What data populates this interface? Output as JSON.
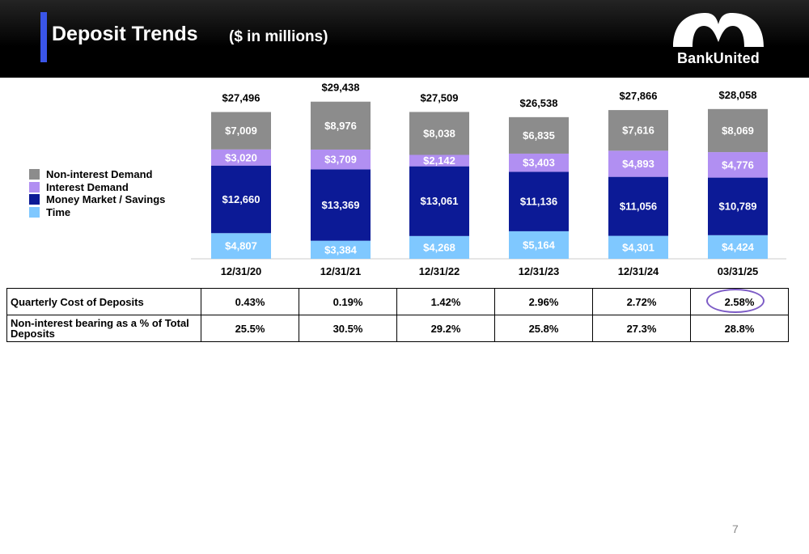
{
  "header": {
    "title": "Deposit Trends",
    "subtitle": "($ in millions)",
    "logo_text": "BankUnited"
  },
  "colors": {
    "non_interest_demand": "#8c8c8c",
    "interest_demand": "#b18ff2",
    "money_market_savings": "#0c1a96",
    "time": "#7fc8ff",
    "accent": "#3a55e8",
    "highlight_ring": "#7d5cc6"
  },
  "chart_data": {
    "type": "bar",
    "stacked": true,
    "categories": [
      "12/31/20",
      "12/31/21",
      "12/31/22",
      "12/31/23",
      "12/31/24",
      "03/31/25"
    ],
    "series": [
      {
        "name": "Time",
        "values": [
          4807,
          3384,
          4268,
          5164,
          4301,
          4424
        ],
        "labels": [
          "$4,807",
          "$3,384",
          "$4,268",
          "$5,164",
          "$4,301",
          "$4,424"
        ]
      },
      {
        "name": "Money Market / Savings",
        "values": [
          12660,
          13369,
          13061,
          11136,
          11056,
          10789
        ],
        "labels": [
          "$12,660",
          "$13,369",
          "$13,061",
          "$11,136",
          "$11,056",
          "$10,789"
        ]
      },
      {
        "name": "Interest Demand",
        "values": [
          3020,
          3709,
          2142,
          3403,
          4893,
          4776
        ],
        "labels": [
          "$3,020",
          "$3,709",
          "$2,142",
          "$3,403",
          "$4,893",
          "$4,776"
        ]
      },
      {
        "name": "Non-interest Demand",
        "values": [
          7009,
          8976,
          8038,
          6835,
          7616,
          8069
        ],
        "labels": [
          "$7,009",
          "$8,976",
          "$8,038",
          "$6,835",
          "$7,616",
          "$8,069"
        ]
      }
    ],
    "totals": [
      27496,
      29438,
      27509,
      26538,
      27866,
      28058
    ],
    "total_labels": [
      "$27,496",
      "$29,438",
      "$27,509",
      "$26,538",
      "$27,866",
      "$28,058"
    ],
    "legend": [
      "Non-interest Demand",
      "Interest Demand",
      "Money Market / Savings",
      "Time"
    ],
    "legend_position": "left",
    "grid": false
  },
  "table": {
    "rows": [
      {
        "label": "Quarterly Cost of Deposits",
        "values": [
          "0.43%",
          "0.19%",
          "1.42%",
          "2.96%",
          "2.72%",
          "2.58%"
        ]
      },
      {
        "label": "Non-interest bearing as a % of Total Deposits",
        "values": [
          "25.5%",
          "30.5%",
          "29.2%",
          "25.8%",
          "27.3%",
          "28.8%"
        ]
      }
    ]
  },
  "page_number": "7"
}
